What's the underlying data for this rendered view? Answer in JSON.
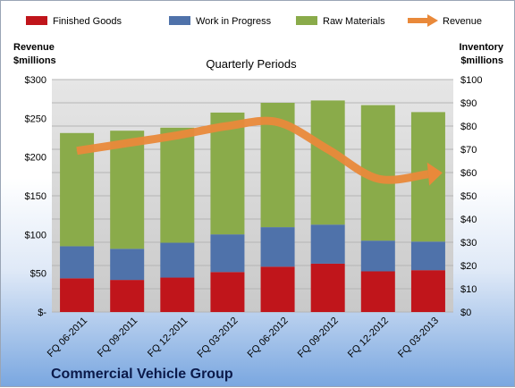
{
  "chart_data": {
    "type": "bar",
    "stacked": true,
    "title": "Commercial Vehicle Group",
    "subtitle": "Quarterly Periods",
    "categories": [
      "FQ 06-2011",
      "FQ 09-2011",
      "FQ 12-2011",
      "FQ 03-2012",
      "FQ 06-2012",
      "FQ 09-2012",
      "FQ 12-2012",
      "FQ 03-2013"
    ],
    "series": [
      {
        "name": "Finished Goods",
        "axis": "right",
        "color": "#c0151b",
        "values": [
          14.5,
          13.8,
          14.8,
          17.2,
          19.5,
          20.8,
          17.5,
          18
        ]
      },
      {
        "name": "Work in Progress",
        "axis": "right",
        "color": "#4f72aa",
        "values": [
          13.8,
          13.4,
          15,
          16.2,
          17,
          16.8,
          13.2,
          12.3
        ]
      },
      {
        "name": "Raw Materials",
        "axis": "right",
        "color": "#8aab4a",
        "values": [
          48.7,
          50.8,
          49.5,
          52.4,
          53.5,
          53.4,
          58.3,
          55.7
        ]
      },
      {
        "name": "Revenue",
        "axis": "left",
        "type": "line",
        "color": "#e9893a",
        "values": [
          208,
          218,
          228,
          240,
          245,
          210,
          172,
          178
        ]
      }
    ],
    "left_axis": {
      "title_lines": [
        "Revenue",
        "$millions"
      ],
      "ylim": [
        0,
        300
      ],
      "ticks": [
        "$-",
        "$50",
        "$100",
        "$150",
        "$200",
        "$250",
        "$300"
      ]
    },
    "right_axis": {
      "title_lines": [
        "Inventory",
        "$millions"
      ],
      "ylim": [
        0,
        100
      ],
      "ticks": [
        "$0",
        "$10",
        "$20",
        "$30",
        "$40",
        "$50",
        "$60",
        "$70",
        "$80",
        "$90",
        "$100"
      ]
    },
    "legend_position": "top",
    "grid": true
  }
}
